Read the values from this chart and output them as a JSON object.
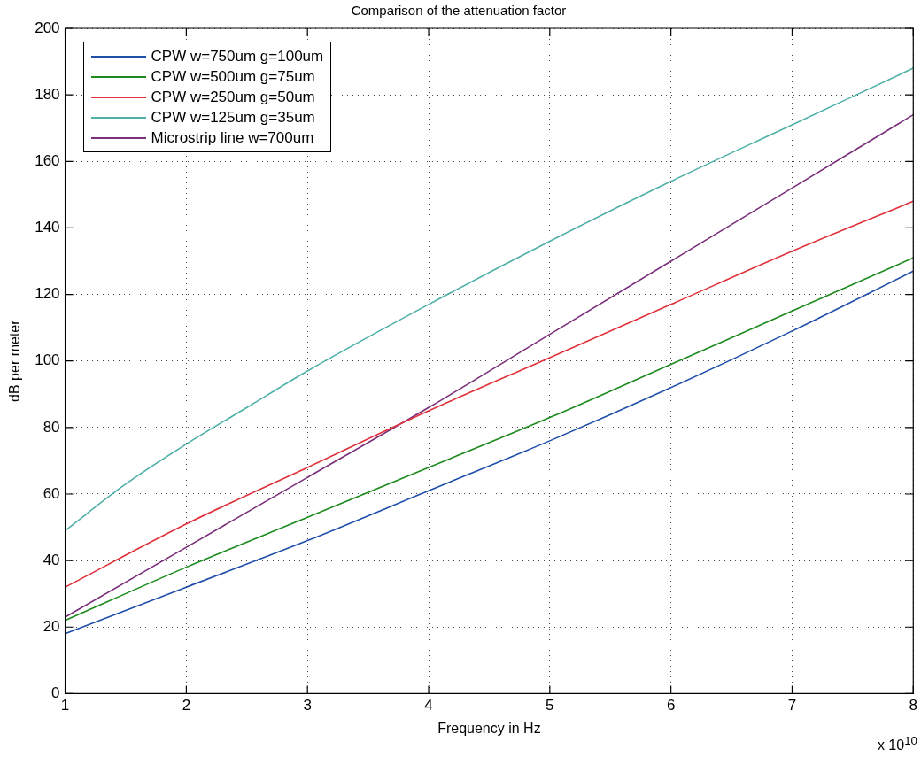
{
  "chart_data": {
    "type": "line",
    "title": "Comparison of the attenuation factor",
    "xlabel": "Frequency in Hz",
    "ylabel": "dB per meter",
    "annotations": [
      "x 10$^{10}$"
    ],
    "xlim": [
      1,
      8
    ],
    "xticks": [
      1,
      2,
      3,
      4,
      5,
      6,
      7,
      8
    ],
    "ylim": [
      0,
      200
    ],
    "yticks": [
      0,
      20,
      40,
      60,
      80,
      100,
      120,
      140,
      160,
      180,
      200
    ],
    "grid": true,
    "legend": "top left",
    "marker": "none",
    "line_style": "solid",
    "series": [
      {
        "name": "CPW w=750um g=100um",
        "color": "#1f4fa8",
        "x": [
          1,
          2,
          3,
          4,
          5,
          6,
          7,
          8
        ],
        "values": [
          18,
          32,
          46,
          61,
          76,
          92,
          109,
          127
        ]
      },
      {
        "name": "CPW w=500um g=75um",
        "color": "#1c8a1c",
        "x": [
          1,
          2,
          3,
          4,
          5,
          6,
          7,
          8
        ],
        "values": [
          22,
          38,
          53,
          68,
          83,
          99,
          115,
          131
        ]
      },
      {
        "name": "CPW w=250um g=50um",
        "color": "#e0303a",
        "x": [
          1,
          2,
          3,
          4,
          5,
          6,
          7,
          8
        ],
        "values": [
          32,
          51,
          68,
          85,
          101,
          117,
          133,
          148
        ]
      },
      {
        "name": "CPW w=125um g=35um",
        "color": "#4fb0a8",
        "x": [
          1,
          1.5,
          2,
          2.5,
          3,
          4,
          5,
          6,
          7,
          8
        ],
        "values": [
          49,
          63,
          75,
          86,
          97,
          117,
          136,
          154,
          171,
          188
        ]
      },
      {
        "name": "Microstrip line w=700um",
        "color": "#7a2f7a",
        "x": [
          1,
          2,
          3,
          4,
          5,
          6,
          7,
          8
        ],
        "values": [
          23,
          44,
          65,
          86,
          108,
          130,
          152,
          174
        ]
      }
    ]
  }
}
